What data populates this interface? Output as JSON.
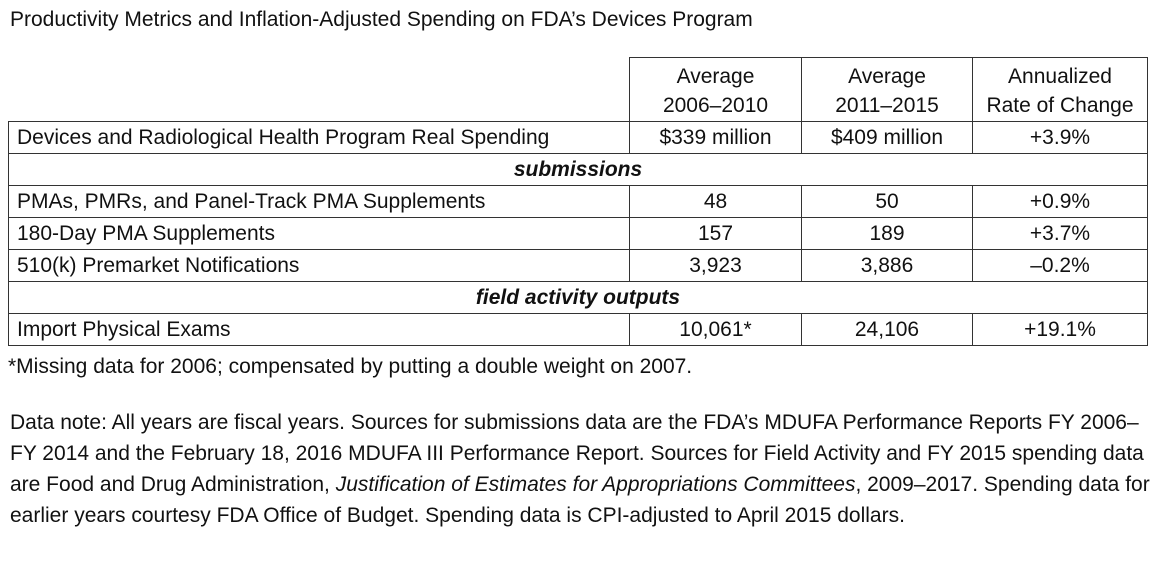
{
  "title": "Productivity Metrics and Inflation-Adjusted Spending on FDA’s Devices Program",
  "table": {
    "columns": [
      {
        "line1": "Average",
        "line2": "2006–2010"
      },
      {
        "line1": "Average",
        "line2": "2011–2015"
      },
      {
        "line1": "Annualized",
        "line2": "Rate of Change"
      }
    ],
    "spending_row": {
      "label": "Devices and Radiological Health Program Real Spending",
      "v1": "$339 million",
      "v2": "$409 million",
      "v3": "+3.9%"
    },
    "section_submissions": "submissions",
    "submission_rows": [
      {
        "label": "PMAs, PMRs, and Panel-Track PMA Supplements",
        "v1": "48",
        "v2": "50",
        "v3": "+0.9%"
      },
      {
        "label": "180-Day PMA Supplements",
        "v1": "157",
        "v2": "189",
        "v3": "+3.7%"
      },
      {
        "label": "510(k) Premarket Notifications",
        "v1": "3,923",
        "v2": "3,886",
        "v3": "–0.2%"
      }
    ],
    "section_field": "field activity outputs",
    "field_rows": [
      {
        "label": "Import Physical Exams",
        "v1": "10,061*",
        "v2": "24,106",
        "v3": "+19.1%"
      }
    ]
  },
  "footnote": "*Missing data for 2006; compensated by putting a double weight on 2007.",
  "data_note": {
    "part1": "Data note: All years are fiscal years. Sources for submissions data are the FDA’s MDUFA Performance Reports FY 2006–FY 2014 and the February 18, 2016 MDUFA III Performance Report. Sources for Field Activity and FY 2015 spending data are Food and Drug Administration, ",
    "italic": "Justification of Estimates for Appropriations Committees",
    "part2": ", 2009–2017. Spending data for earlier years courtesy FDA Office of Budget. Spending data is CPI-adjusted to April 2015 dollars."
  }
}
